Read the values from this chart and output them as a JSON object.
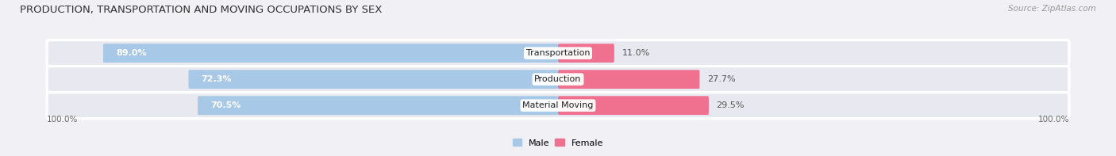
{
  "title": "PRODUCTION, TRANSPORTATION AND MOVING OCCUPATIONS BY SEX",
  "source_text": "Source: ZipAtlas.com",
  "categories": [
    "Transportation",
    "Production",
    "Material Moving"
  ],
  "male_values": [
    89.0,
    72.3,
    70.5
  ],
  "female_values": [
    11.0,
    27.7,
    29.5
  ],
  "male_color": "#a8c8e8",
  "female_color": "#f07090",
  "male_label": "Male",
  "female_label": "Female",
  "row_bg_color": "#e8e8f0",
  "title_fontsize": 9.5,
  "source_fontsize": 7.5,
  "label_fontsize": 8.0,
  "tick_fontsize": 7.5,
  "left_label": "100.0%",
  "right_label": "100.0%",
  "fig_bg": "#f0f0f5"
}
